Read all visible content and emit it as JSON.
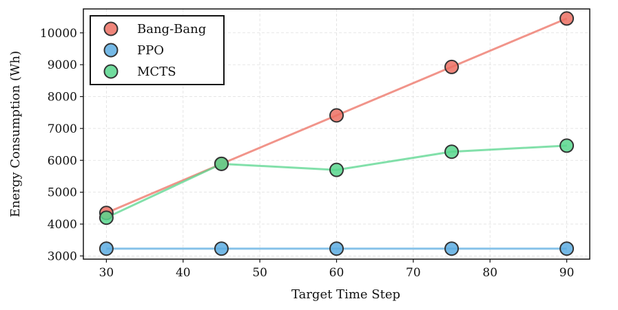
{
  "chart_data": {
    "type": "line",
    "title": "",
    "xlabel": "Target Time Step",
    "ylabel": "Energy Consumption (Wh)",
    "x": [
      30,
      45,
      60,
      75,
      90
    ],
    "xlim": [
      27,
      93
    ],
    "ylim": [
      2900,
      10750
    ],
    "xticks": [
      30,
      40,
      50,
      60,
      70,
      80,
      90
    ],
    "yticks": [
      3000,
      4000,
      5000,
      6000,
      7000,
      8000,
      9000,
      10000
    ],
    "grid": true,
    "legend_position": "top-left",
    "series": [
      {
        "name": "Bang-Bang",
        "color": "#ec7063",
        "values": [
          4350,
          5890,
          7410,
          8930,
          10450
        ]
      },
      {
        "name": "PPO",
        "color": "#5dade2",
        "values": [
          3230,
          3230,
          3230,
          3230,
          3230
        ]
      },
      {
        "name": "MCTS",
        "color": "#58d68d",
        "values": [
          4200,
          5890,
          5700,
          6270,
          6460
        ]
      }
    ]
  }
}
